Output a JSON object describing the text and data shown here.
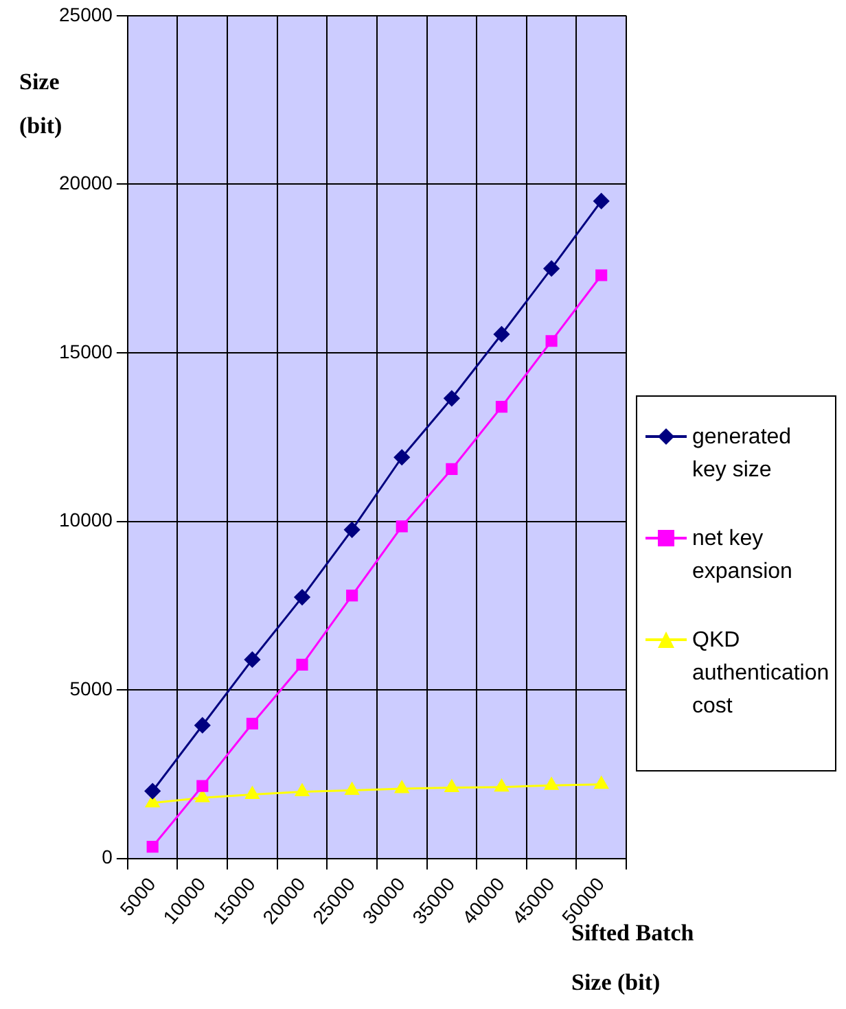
{
  "chart_data": {
    "type": "line",
    "xlabel": "Sifted Batch Size (bit)",
    "ylabel": "Size (bit)",
    "categories": [
      "5000",
      "10000",
      "15000",
      "20000",
      "25000",
      "30000",
      "35000",
      "40000",
      "45000",
      "50000"
    ],
    "ylim": [
      0,
      25000
    ],
    "yticks": [
      0,
      5000,
      10000,
      15000,
      20000,
      25000
    ],
    "grid": true,
    "legend": "right",
    "line_style": "solid",
    "series": [
      {
        "name": "generated key size",
        "color": "#000080",
        "marker": "diamond",
        "values": [
          2000,
          3950,
          5900,
          7750,
          9750,
          11900,
          13650,
          15550,
          17500,
          19500
        ]
      },
      {
        "name": "net key expansion",
        "color": "#ff00ff",
        "marker": "square",
        "values": [
          350,
          2150,
          4000,
          5750,
          7800,
          9850,
          11550,
          13400,
          15350,
          17300
        ]
      },
      {
        "name": "QKD authentication cost",
        "color": "#ffff00",
        "marker": "triangle",
        "values": [
          1650,
          1800,
          1900,
          1980,
          2020,
          2070,
          2100,
          2120,
          2170,
          2200
        ]
      }
    ]
  }
}
